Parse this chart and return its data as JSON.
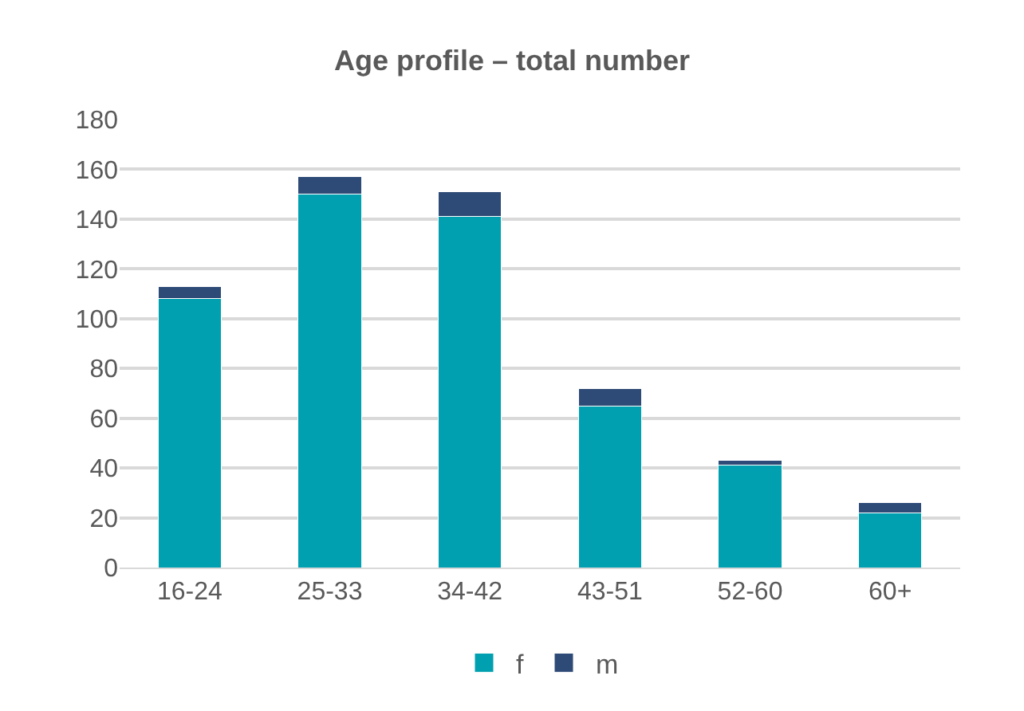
{
  "chart_data": {
    "type": "bar",
    "title": "Age profile – total number",
    "categories": [
      "16-24",
      "25-33",
      "34-42",
      "43-51",
      "52-60",
      "60+"
    ],
    "stacked": true,
    "series": [
      {
        "name": "f",
        "color": "#00a0b0",
        "values": [
          108,
          150,
          141,
          65,
          41,
          22
        ]
      },
      {
        "name": "m",
        "color": "#2e4a76",
        "values": [
          5,
          7,
          10,
          7,
          2,
          4
        ]
      }
    ],
    "ylim": [
      0,
      180
    ],
    "yticks": [
      0,
      20,
      40,
      60,
      80,
      100,
      120,
      140,
      160,
      180
    ],
    "grid": "y",
    "legend": "bottom"
  }
}
